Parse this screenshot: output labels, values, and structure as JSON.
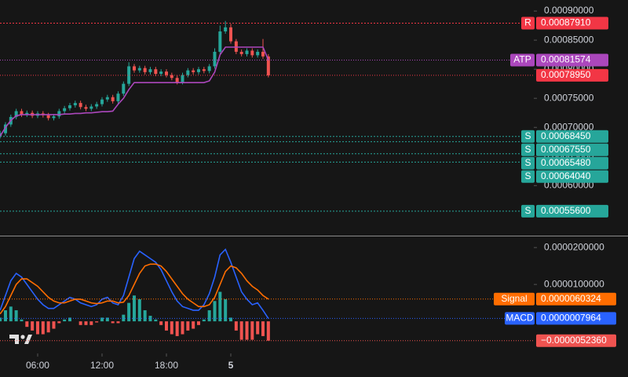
{
  "chart_data": [
    {
      "type": "candlestick",
      "x": [
        2.5,
        3,
        3.5,
        4,
        4.5,
        5,
        5.5,
        6,
        6.5,
        7,
        7.5,
        8,
        8.5,
        9,
        9.5,
        10,
        10.5,
        11,
        11.5,
        12,
        12.5,
        13,
        13.5,
        14,
        14.5,
        15,
        15.5,
        16,
        16.5,
        17,
        17.5,
        18,
        18.5,
        19,
        19.5,
        20,
        20.5,
        21,
        21.5,
        22,
        22.5,
        23,
        23.5,
        24,
        24.5,
        25,
        25.5,
        26,
        26.5,
        27,
        27.5
      ],
      "open": [
        0.000685,
        0.00069,
        0.000705,
        0.000718,
        0.000728,
        0.000722,
        0.000725,
        0.00072,
        0.000724,
        0.000721,
        0.000716,
        0.000719,
        0.000728,
        0.000733,
        0.000738,
        0.000742,
        0.000735,
        0.000732,
        0.000736,
        0.00074,
        0.000748,
        0.000752,
        0.000745,
        0.000758,
        0.000775,
        0.000805,
        0.000798,
        0.000802,
        0.000795,
        0.0008,
        0.000792,
        0.000796,
        0.00079,
        0.000785,
        0.000778,
        0.00079,
        0.000798,
        0.000795,
        0.0008,
        0.000797,
        0.000805,
        0.00083,
        0.000865,
        0.000872,
        0.000848,
        0.00083,
        0.000826,
        0.000832,
        0.000824,
        0.00083,
        0.000822
      ],
      "high": [
        0.000694,
        0.000709,
        0.000722,
        0.000732,
        0.000732,
        0.000729,
        0.000729,
        0.000728,
        0.000728,
        0.000725,
        0.000723,
        0.000732,
        0.000737,
        0.000742,
        0.000746,
        0.000746,
        0.000739,
        0.00074,
        0.000744,
        0.000752,
        0.000756,
        0.000756,
        0.000762,
        0.000779,
        0.000812,
        0.000809,
        0.000806,
        0.000806,
        0.000804,
        0.000804,
        0.0008,
        0.0008,
        0.000794,
        0.000789,
        0.000794,
        0.000802,
        0.000802,
        0.000804,
        0.000804,
        0.000809,
        0.000836,
        0.000875,
        0.000883,
        0.000878,
        0.000852,
        0.000834,
        0.000836,
        0.000836,
        0.000834,
        0.000852,
        0.000826
      ],
      "low": [
        0.000681,
        0.000686,
        0.000701,
        0.000714,
        0.000718,
        0.000718,
        0.000716,
        0.000716,
        0.000717,
        0.000712,
        0.000712,
        0.000715,
        0.000724,
        0.000729,
        0.000734,
        0.000731,
        0.000728,
        0.000728,
        0.000732,
        0.000736,
        0.000744,
        0.000741,
        0.000741,
        0.000754,
        0.000771,
        0.000794,
        0.000794,
        0.000791,
        0.000791,
        0.000788,
        0.000788,
        0.000786,
        0.000781,
        0.000774,
        0.000774,
        0.000786,
        0.000791,
        0.000791,
        0.000793,
        0.000793,
        0.000801,
        0.000826,
        0.000861,
        0.000844,
        0.000826,
        0.000822,
        0.000822,
        0.00082,
        0.00082,
        0.000818,
        0.000786
      ],
      "close": [
        0.00069,
        0.000705,
        0.000718,
        0.000728,
        0.000722,
        0.000725,
        0.00072,
        0.000724,
        0.000721,
        0.000716,
        0.000719,
        0.000728,
        0.000733,
        0.000738,
        0.000742,
        0.000735,
        0.000732,
        0.000736,
        0.00074,
        0.000748,
        0.000752,
        0.000745,
        0.000758,
        0.000775,
        0.000805,
        0.000798,
        0.000802,
        0.000795,
        0.0008,
        0.000792,
        0.000796,
        0.00079,
        0.000785,
        0.000778,
        0.00079,
        0.000798,
        0.000795,
        0.0008,
        0.000797,
        0.000805,
        0.00083,
        0.000865,
        0.000872,
        0.000848,
        0.00083,
        0.000826,
        0.000832,
        0.000824,
        0.00083,
        0.000822,
        0.0007895
      ],
      "last_close_label": "0.00078950",
      "up_color": "#26a69a",
      "down_color": "#ef5350",
      "last_color": "#f23645",
      "series": [
        {
          "name": "ATP",
          "color": "#ab47bc",
          "last_value_label": "0.00081574",
          "values": [
            0.000685,
            0.0007,
            0.000712,
            0.00072,
            0.000722,
            0.000722,
            0.000722,
            0.000722,
            0.000722,
            0.000722,
            0.000722,
            0.000722,
            0.000723,
            0.000723,
            0.000724,
            0.000724,
            0.000725,
            0.000725,
            0.000726,
            0.000727,
            0.000727,
            0.000728,
            0.00074,
            0.00075,
            0.000765,
            0.000777,
            0.000777,
            0.000777,
            0.000777,
            0.000777,
            0.000777,
            0.000777,
            0.000777,
            0.000777,
            0.000777,
            0.000777,
            0.000777,
            0.000777,
            0.000777,
            0.00078,
            0.000795,
            0.000825,
            0.000838,
            0.000838,
            0.000838,
            0.000838,
            0.000838,
            0.000838,
            0.000838,
            0.000838,
            0.00081574
          ]
        }
      ],
      "levels": [
        {
          "name": "R",
          "value": 0.0008791,
          "value_label": "0.00087910",
          "color": "#f23645"
        },
        {
          "name": "S",
          "value": 0.0006845,
          "value_label": "0.00068450",
          "color": "#26a69a"
        },
        {
          "name": "S",
          "value": 0.0006755,
          "value_label": "0.00067550",
          "color": "#26a69a"
        },
        {
          "name": "S",
          "value": 0.0006548,
          "value_label": "0.00065480",
          "color": "#26a69a"
        },
        {
          "name": "S",
          "value": 0.0006404,
          "value_label": "0.00064040",
          "color": "#26a69a"
        },
        {
          "name": "S",
          "value": 0.000556,
          "value_label": "0.00055600",
          "color": "#26a69a"
        }
      ],
      "xlim": [
        2.49,
        52.24
      ],
      "xticks": [
        {
          "value": 6,
          "label": "06:00"
        },
        {
          "value": 12,
          "label": "12:00"
        },
        {
          "value": 18,
          "label": "18:00"
        },
        {
          "value": 24,
          "label": "5"
        }
      ],
      "ylim": [
        0.000514,
        0.000919
      ],
      "yticks": [
        {
          "value": 0.0009,
          "label": "0.00090000"
        },
        {
          "value": 0.00085,
          "label": "0.00085000"
        },
        {
          "value": 0.0008,
          "label": "0.00080000"
        },
        {
          "value": 0.00075,
          "label": "0.00075000"
        },
        {
          "value": 0.0007,
          "label": "0.00070000"
        },
        {
          "value": 0.00065,
          "label": "0.00065000"
        },
        {
          "value": 0.0006,
          "label": "0.00060000"
        }
      ]
    },
    {
      "type": "macd",
      "series": [
        {
          "name": "MACD",
          "color": "#2962ff",
          "last_value_label": "0.0000007964",
          "values": [
            3e-06,
            7e-06,
            1.1e-05,
            1.3e-05,
            1.2e-05,
            1e-05,
            8e-06,
            6e-06,
            4.5e-06,
            3.5e-06,
            3.5e-06,
            4.5e-06,
            5.5e-06,
            6.5e-06,
            6e-06,
            5e-06,
            4.5e-06,
            4e-06,
            4.5e-06,
            6e-06,
            6.5e-06,
            5e-06,
            4.5e-06,
            7e-06,
            1.2e-05,
            1.7e-05,
            1.9e-05,
            1.8e-05,
            1.7e-05,
            1.6e-05,
            1.4e-05,
            1.1e-05,
            8e-06,
            5.5e-06,
            4e-06,
            3.5e-06,
            3e-06,
            3e-06,
            4.5e-06,
            7.5e-06,
            1.2e-05,
            1.8e-05,
            1.95e-05,
            1.6e-05,
            1.2e-05,
            8e-06,
            6e-06,
            4.5e-06,
            5e-06,
            3e-06,
            7.964e-07
          ]
        },
        {
          "name": "Signal",
          "color": "#ff6d00",
          "last_value_label": "0.0000060324",
          "values": [
            2e-06,
            4e-06,
            7e-06,
            1e-05,
            1.15e-05,
            1.15e-05,
            1.05e-05,
            9.5e-06,
            8e-06,
            6.5e-06,
            5.5e-06,
            5e-06,
            5e-06,
            5.5e-06,
            6e-06,
            6e-06,
            5.5e-06,
            5e-06,
            4.8e-06,
            5e-06,
            5.5e-06,
            5.5e-06,
            5e-06,
            5.2e-06,
            7e-06,
            1e-05,
            1.3e-05,
            1.5e-05,
            1.55e-05,
            1.55e-05,
            1.5e-05,
            1.35e-05,
            1.15e-05,
            9.5e-06,
            7.5e-06,
            6e-06,
            5e-06,
            4e-06,
            4e-06,
            4.5e-06,
            6.5e-06,
            1e-05,
            1.35e-05,
            1.5e-05,
            1.45e-05,
            1.3e-05,
            1.1e-05,
            9.5e-06,
            8.5e-06,
            7e-06,
            6.0324e-06
          ]
        }
      ],
      "histogram": {
        "up_color": "#26a69a",
        "down_color": "#ef5350",
        "last_value_label": "−0.0000052360",
        "values": [
          1e-06,
          3e-06,
          4e-06,
          3e-06,
          5e-07,
          -1.5e-06,
          -2.5e-06,
          -3.5e-06,
          -3.5e-06,
          -3e-06,
          -2e-06,
          -5e-07,
          5e-07,
          1e-06,
          0,
          -1e-06,
          -1e-06,
          -1e-06,
          -3e-07,
          1e-06,
          1e-06,
          -5e-07,
          -5e-07,
          1.8e-06,
          5e-06,
          7e-06,
          6e-06,
          3e-06,
          1.5e-06,
          5e-07,
          -1e-06,
          -2.5e-06,
          -3.5e-06,
          -4e-06,
          -3.5e-06,
          -2.5e-06,
          -2e-06,
          -1e-06,
          5e-07,
          3e-06,
          5.5e-06,
          8e-06,
          6e-06,
          1e-06,
          -2.5e-06,
          -5e-06,
          -5e-06,
          -5e-06,
          -3.5e-06,
          -4e-06,
          -5.236e-06
        ]
      },
      "ylim": [
        -8.7e-06,
        2.28e-05
      ],
      "yticks": [
        {
          "value": 2e-05,
          "label": "0.0000200000"
        },
        {
          "value": 1e-05,
          "label": "0.0000100000"
        }
      ]
    }
  ]
}
